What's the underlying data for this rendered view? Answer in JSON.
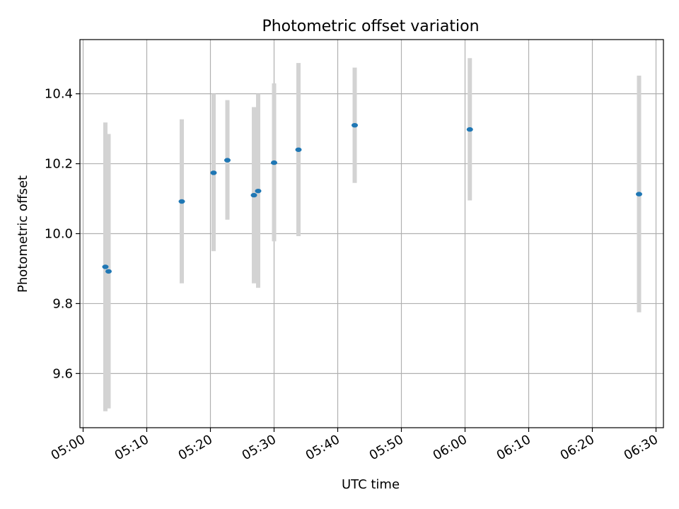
{
  "chart_data": {
    "type": "scatter",
    "title": "Photometric offset variation",
    "xlabel": "UTC time",
    "ylabel": "Photometric offset",
    "xlim": [
      "04:59:30",
      "06:31:10"
    ],
    "ylim": [
      9.445,
      10.555
    ],
    "xticks": [
      "05:00",
      "05:10",
      "05:20",
      "05:30",
      "05:40",
      "05:50",
      "06:00",
      "06:10",
      "06:20",
      "06:30"
    ],
    "yticks": [
      "9.6",
      "9.8",
      "10.0",
      "10.2",
      "10.4"
    ],
    "grid": true,
    "series": [
      {
        "marker_color": "#1f77b4",
        "errorbar_color": "#d3d3d3",
        "points": [
          {
            "x": "05:03:30",
            "y": 9.905,
            "ylo": 9.492,
            "yhi": 10.318
          },
          {
            "x": "05:04:00",
            "y": 9.892,
            "ylo": 9.5,
            "yhi": 10.285
          },
          {
            "x": "05:15:30",
            "y": 10.092,
            "ylo": 9.858,
            "yhi": 10.327
          },
          {
            "x": "05:20:30",
            "y": 10.174,
            "ylo": 9.95,
            "yhi": 10.4
          },
          {
            "x": "05:22:40",
            "y": 10.21,
            "ylo": 10.04,
            "yhi": 10.382
          },
          {
            "x": "05:26:50",
            "y": 10.11,
            "ylo": 9.858,
            "yhi": 10.362
          },
          {
            "x": "05:27:30",
            "y": 10.122,
            "ylo": 9.845,
            "yhi": 10.4
          },
          {
            "x": "05:30:00",
            "y": 10.203,
            "ylo": 9.978,
            "yhi": 10.43
          },
          {
            "x": "05:33:50",
            "y": 10.24,
            "ylo": 9.993,
            "yhi": 10.488
          },
          {
            "x": "05:42:40",
            "y": 10.31,
            "ylo": 10.145,
            "yhi": 10.475
          },
          {
            "x": "06:00:45",
            "y": 10.298,
            "ylo": 10.095,
            "yhi": 10.502
          },
          {
            "x": "06:27:20",
            "y": 10.113,
            "ylo": 9.775,
            "yhi": 10.452
          }
        ]
      }
    ]
  }
}
